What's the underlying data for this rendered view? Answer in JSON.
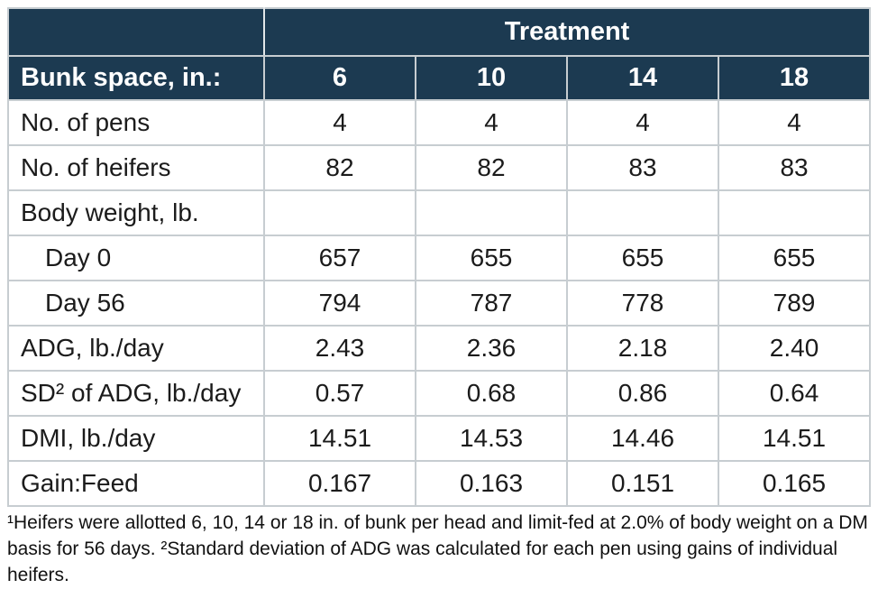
{
  "chart_data": {
    "type": "table",
    "title": "Treatment",
    "header": {
      "corner_label": "",
      "group_label": "Treatment",
      "row_axis_label": "Bunk space, in.:",
      "columns": [
        "6",
        "10",
        "14",
        "18"
      ]
    },
    "rows": [
      {
        "label": "No. of pens",
        "indent": false,
        "values": [
          "4",
          "4",
          "4",
          "4"
        ]
      },
      {
        "label": "No. of heifers",
        "indent": false,
        "values": [
          "82",
          "82",
          "83",
          "83"
        ]
      },
      {
        "label": "Body weight, lb.",
        "indent": false,
        "values": [
          "",
          "",
          "",
          ""
        ]
      },
      {
        "label": "Day 0",
        "indent": true,
        "values": [
          "657",
          "655",
          "655",
          "655"
        ]
      },
      {
        "label": "Day 56",
        "indent": true,
        "values": [
          "794",
          "787",
          "778",
          "789"
        ]
      },
      {
        "label": "ADG, lb./day",
        "indent": false,
        "values": [
          "2.43",
          "2.36",
          "2.18",
          "2.40"
        ]
      },
      {
        "label": "SD² of ADG, lb./day",
        "indent": false,
        "values": [
          "0.57",
          "0.68",
          "0.86",
          "0.64"
        ]
      },
      {
        "label": "DMI, lb./day",
        "indent": false,
        "values": [
          "14.51",
          "14.53",
          "14.46",
          "14.51"
        ]
      },
      {
        "label": "Gain:Feed",
        "indent": false,
        "values": [
          "0.167",
          "0.163",
          "0.151",
          "0.165"
        ]
      }
    ]
  },
  "footnote": {
    "text": "¹Heifers were allotted 6, 10, 14 or 18 in. of bunk per head and limit-fed at 2.0% of body weight on a DM basis for 56 days. ²Standard deviation of ADG was calculated for each pen using gains of individual heifers."
  },
  "colors": {
    "header_bg": "#1c3a51",
    "header_text": "#ffffff",
    "body_text": "#1b1b1b",
    "grid_line": "#c7cdd1"
  }
}
